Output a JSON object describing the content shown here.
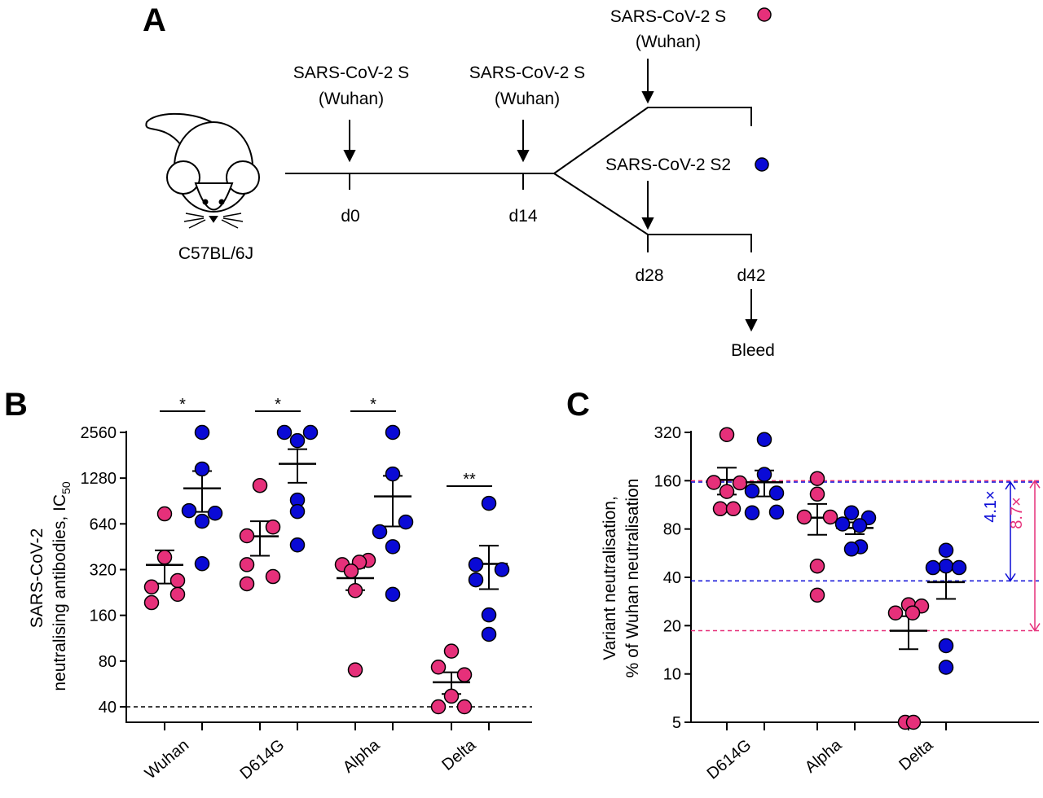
{
  "panel_a": {
    "label": "A",
    "strain": "C57BL/6J",
    "d0_immunogen": [
      "SARS-CoV-2 S",
      "(Wuhan)"
    ],
    "d14_immunogen": [
      "SARS-CoV-2 S",
      "(Wuhan)"
    ],
    "d28_upper_immunogen": [
      "SARS-CoV-2 S",
      "(Wuhan)"
    ],
    "d28_lower_immunogen": "SARS-CoV-2 S2",
    "days": [
      "d0",
      "d14",
      "d28",
      "d42"
    ],
    "endpoint": "Bleed",
    "icons": [
      "mouse-icon",
      "arrow-down-icon"
    ]
  },
  "colors": {
    "s_wuhan": "#e6307a",
    "s2": "#0a0ad6"
  },
  "chart_data": [
    {
      "panel": "B",
      "type": "scatter",
      "ylabel_lines": [
        "SARS-CoV-2",
        "neutralising antibodies, IC"
      ],
      "ylabel_subscript": "50",
      "yscale": "log2",
      "ylim": [
        40,
        2560
      ],
      "yticks": [
        "40",
        "80",
        "160",
        "320",
        "640",
        "1280",
        "2560"
      ],
      "categories": [
        "Wuhan",
        "D614G",
        "Alpha",
        "Delta"
      ],
      "detection_limit": 40,
      "significance": [
        "*",
        "*",
        "*",
        "**"
      ],
      "series": [
        {
          "name": "SARS-CoV-2 S (Wuhan)",
          "color": "#e6307a",
          "values": [
            [
              745,
              386,
              271,
              246,
              220,
              194
            ],
            [
              1145,
              610,
              534,
              345,
              288,
              258
            ],
            [
              368,
              358,
              345,
              313,
              233,
              70
            ],
            [
              93,
              73,
              65,
              47,
              35,
              35
            ]
          ]
        },
        {
          "name": "SARS-CoV-2 S2",
          "color": "#0a0ad6",
          "values": [
            [
              2560,
              1470,
              782,
              752,
              666,
              350
            ],
            [
              2560,
              2560,
              2260,
              918,
              772,
              465
            ],
            [
              2560,
              1363,
              658,
              568,
              453,
              220
            ],
            [
              874,
              345,
              320,
              274,
              161,
              120
            ]
          ]
        }
      ],
      "error_bars": "mean ± SEM"
    },
    {
      "panel": "C",
      "type": "scatter",
      "ylabel_lines": [
        "Variant neutralisation,",
        "% of Wuhan neutralisation"
      ],
      "yscale": "log2",
      "ylim": [
        5,
        320
      ],
      "yticks": [
        "5",
        "10",
        "20",
        "40",
        "80",
        "160",
        "320"
      ],
      "categories": [
        "D614G",
        "Alpha",
        "Delta"
      ],
      "series": [
        {
          "name": "SARS-CoV-2 S (Wuhan)",
          "color": "#e6307a",
          "values": [
            [
              310,
              156,
              155,
              137,
              107,
              107
            ],
            [
              165,
              132,
              95,
              95,
              47,
              31
            ],
            [
              27,
              26.5,
              24,
              24,
              5,
              5
            ]
          ]
        },
        {
          "name": "SARS-CoV-2 S2",
          "color": "#0a0ad6",
          "values": [
            [
              289,
              175,
              138,
              134,
              101,
              102
            ],
            [
              101,
              94,
              86,
              84,
              62,
              60
            ],
            [
              59,
              47,
              46,
              46,
              15,
              11
            ]
          ]
        }
      ],
      "reference_lines": {
        "s_d614g": 160,
        "s2_d614g": 157,
        "s2_delta": 38,
        "s_delta": 18.6
      },
      "fold_annotations": [
        {
          "text": "4.1×",
          "color": "#0a0ad6"
        },
        {
          "text": "8.7×",
          "color": "#e6307a"
        }
      ],
      "error_bars": "mean ± SEM"
    }
  ]
}
